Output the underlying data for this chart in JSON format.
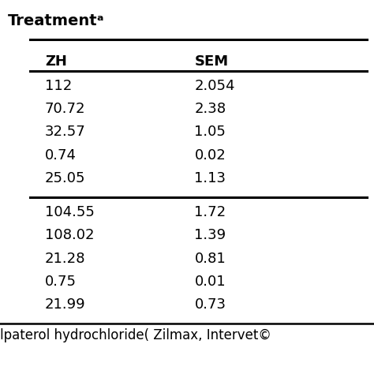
{
  "title": "Treatmentᵃ",
  "headers": [
    "ZH",
    "SEM"
  ],
  "group1": [
    [
      "112",
      "2.054"
    ],
    [
      "70.72",
      "2.38"
    ],
    [
      "32.57",
      "1.05"
    ],
    [
      "0.74",
      "0.02"
    ],
    [
      "25.05",
      "1.13"
    ]
  ],
  "group2": [
    [
      "104.55",
      "1.72"
    ],
    [
      "108.02",
      "1.39"
    ],
    [
      "21.28",
      "0.81"
    ],
    [
      "0.75",
      "0.01"
    ],
    [
      "21.99",
      "0.73"
    ]
  ],
  "footer": "lpaterol hydrochloride( Zilmax, Intervet©",
  "bg_color": "#ffffff",
  "text_color": "#000000",
  "line_color": "#000000",
  "font_size": 13,
  "header_font_size": 13
}
